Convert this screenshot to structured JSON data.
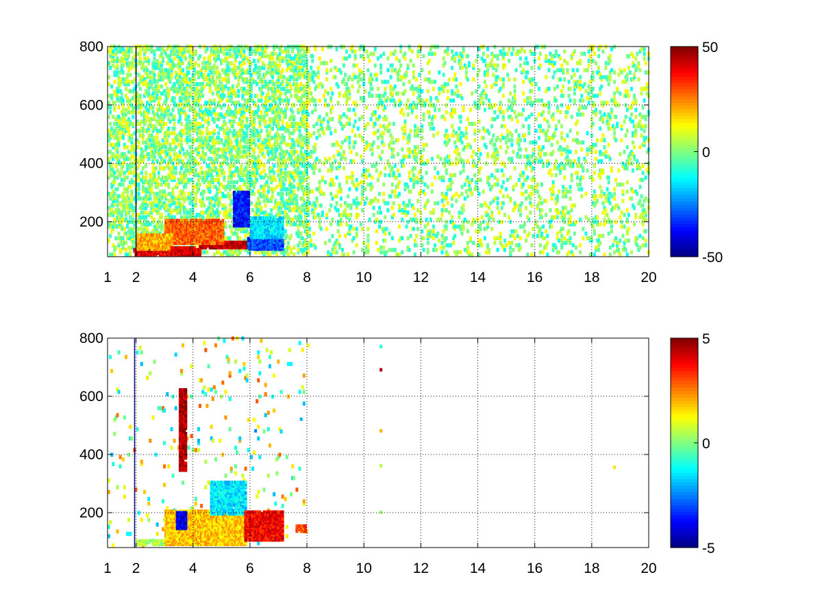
{
  "chart_data": [
    {
      "type": "heatmap",
      "title": "",
      "xlabel": "",
      "ylabel": "",
      "xlim": [
        1,
        20
      ],
      "ylim": [
        80,
        800
      ],
      "x_ticks": [
        "1",
        "2",
        "4",
        "6",
        "8",
        "10",
        "12",
        "14",
        "16",
        "18",
        "20"
      ],
      "x_tick_values": [
        1,
        2,
        4,
        6,
        8,
        10,
        12,
        14,
        16,
        18,
        20
      ],
      "y_ticks": [
        "200",
        "400",
        "600",
        "800"
      ],
      "y_tick_values": [
        200,
        400,
        600,
        800
      ],
      "grid": true,
      "colormap": "jet",
      "colorbar": {
        "min": -50,
        "max": 50,
        "ticks": [
          "50",
          "0",
          "-50"
        ],
        "tick_values": [
          50,
          0,
          -50
        ]
      },
      "vertical_lines": [
        {
          "x": 2.0,
          "value": -50
        }
      ],
      "regions": [
        {
          "x": [
            1.9,
            4.2
          ],
          "y": [
            80,
            100
          ],
          "value": 40
        },
        {
          "x": [
            4.2,
            5.9
          ],
          "y": [
            105,
            125
          ],
          "value": 45
        },
        {
          "x": [
            3.0,
            5.0
          ],
          "y": [
            120,
            200
          ],
          "value": 28
        },
        {
          "x": [
            5.4,
            5.9
          ],
          "y": [
            180,
            300
          ],
          "value": -35
        },
        {
          "x": [
            5.9,
            7.1
          ],
          "y": [
            100,
            140
          ],
          "value": -30
        },
        {
          "x": [
            6.0,
            7.1
          ],
          "y": [
            140,
            210
          ],
          "value": -15
        },
        {
          "x": [
            2.0,
            3.2
          ],
          "y": [
            100,
            150
          ],
          "value": 20
        },
        {
          "x": [
            3.2,
            4.0
          ],
          "y": [
            80,
            110
          ],
          "value": 42
        }
      ],
      "scatter_density": [
        {
          "x": [
            1,
            8
          ],
          "y": [
            80,
            800
          ],
          "density": 0.3
        },
        {
          "x": [
            8,
            20
          ],
          "y": [
            80,
            800
          ],
          "density": 0.12
        }
      ],
      "value_range": [
        -12,
        14
      ]
    },
    {
      "type": "heatmap",
      "title": "",
      "xlabel": "",
      "ylabel": "",
      "xlim": [
        1,
        20
      ],
      "ylim": [
        80,
        800
      ],
      "x_ticks": [
        "1",
        "2",
        "4",
        "6",
        "8",
        "10",
        "12",
        "14",
        "16",
        "18",
        "20"
      ],
      "x_tick_values": [
        1,
        2,
        4,
        6,
        8,
        10,
        12,
        14,
        16,
        18,
        20
      ],
      "y_ticks": [
        "200",
        "400",
        "600",
        "800"
      ],
      "y_tick_values": [
        200,
        400,
        600,
        800
      ],
      "grid": true,
      "colormap": "jet",
      "colorbar": {
        "min": -5,
        "max": 5,
        "ticks": [
          "5",
          "0",
          "-5"
        ],
        "tick_values": [
          5,
          0,
          -5
        ]
      },
      "vertical_lines": [
        {
          "x": 1.95,
          "value": -5
        }
      ],
      "regions": [
        {
          "x": [
            2.0,
            3.0
          ],
          "y": [
            85,
            100
          ],
          "value": 0.5
        },
        {
          "x": [
            3.0,
            5.8
          ],
          "y": [
            85,
            200
          ],
          "value": 1.8
        },
        {
          "x": [
            3.4,
            3.7
          ],
          "y": [
            140,
            200
          ],
          "value": -4
        },
        {
          "x": [
            4.6,
            5.8
          ],
          "y": [
            190,
            300
          ],
          "value": -1.5
        },
        {
          "x": [
            5.8,
            7.1
          ],
          "y": [
            100,
            200
          ],
          "value": 3.8
        },
        {
          "x": [
            7.6,
            7.9
          ],
          "y": [
            130,
            150
          ],
          "value": 3.0
        },
        {
          "x": [
            3.5,
            3.7
          ],
          "y": [
            340,
            620
          ],
          "value": 4.5
        }
      ],
      "points": [
        {
          "x": 10.6,
          "y": 690,
          "value": 4.5
        },
        {
          "x": 10.6,
          "y": 480,
          "value": 2.0
        },
        {
          "x": 10.6,
          "y": 770,
          "value": -1.0
        },
        {
          "x": 10.6,
          "y": 360,
          "value": 0.5
        },
        {
          "x": 10.6,
          "y": 200,
          "value": 0.3
        },
        {
          "x": 6.2,
          "y": 480,
          "value": -2.5
        },
        {
          "x": 7.8,
          "y": 520,
          "value": -2.0
        },
        {
          "x": 18.8,
          "y": 355,
          "value": 1.5
        }
      ],
      "scatter_density": [
        {
          "x": [
            1,
            8
          ],
          "y": [
            80,
            800
          ],
          "density": 0.02
        }
      ],
      "value_range": [
        -2,
        3
      ]
    }
  ]
}
